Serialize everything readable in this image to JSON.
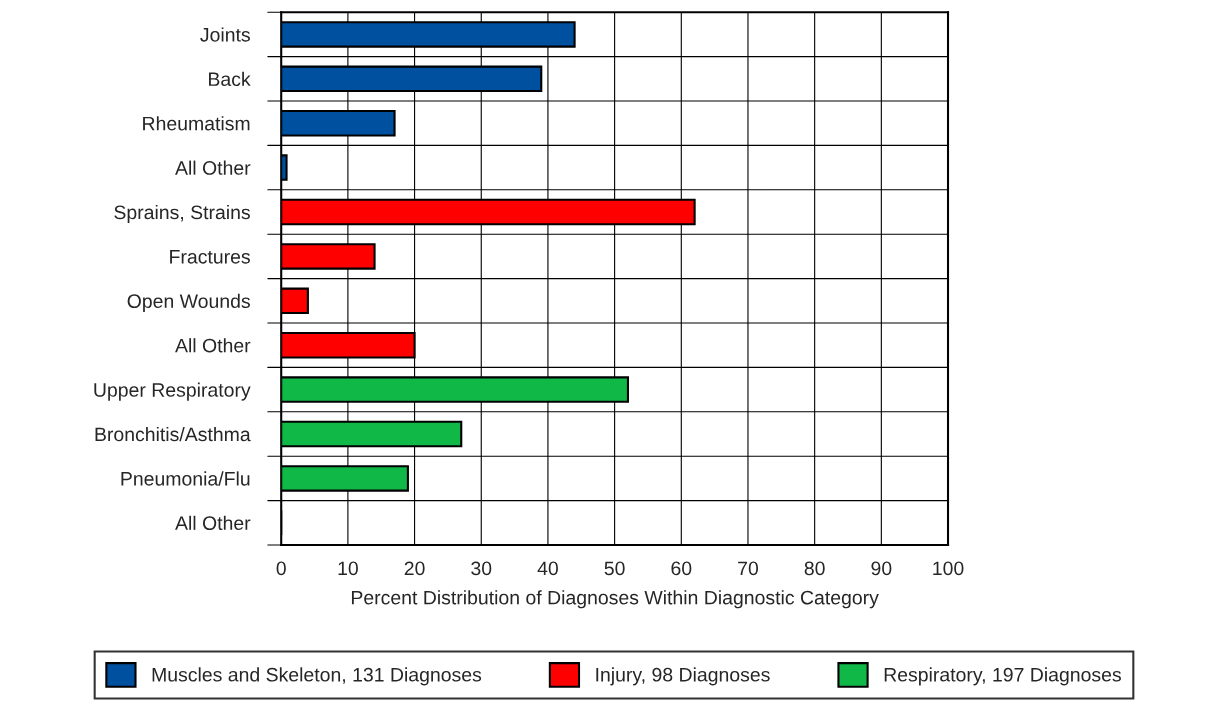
{
  "chart_data": {
    "type": "bar",
    "orientation": "horizontal",
    "categories": [
      "Joints",
      "Back",
      "Rheumatism",
      "All Other",
      "Sprains, Strains",
      "Fractures",
      "Open Wounds",
      "All Other",
      "Upper Respiratory",
      "Bronchitis/Asthma",
      "Pneumonia/Flu",
      "All Other"
    ],
    "series": [
      {
        "name": "Muscles and Skeleton, 131 Diagnoses",
        "color": "#0050a0",
        "values": [
          44,
          39,
          17,
          0.8,
          null,
          null,
          null,
          null,
          null,
          null,
          null,
          null
        ]
      },
      {
        "name": "Injury, 98 Diagnoses",
        "color": "#ff0000",
        "values": [
          null,
          null,
          null,
          null,
          62,
          14,
          4,
          20,
          null,
          null,
          null,
          null
        ]
      },
      {
        "name": "Respiratory, 197 Diagnoses",
        "color": "#10b848",
        "values": [
          null,
          null,
          null,
          null,
          null,
          null,
          null,
          null,
          52,
          27,
          19,
          0
        ]
      }
    ],
    "xlabel": "Percent Distribution of Diagnoses Within Diagnostic Category",
    "xlim": [
      0,
      100
    ],
    "xticks": [
      0,
      10,
      20,
      30,
      40,
      50,
      60,
      70,
      80,
      90,
      100
    ],
    "grid": true,
    "legend": "bottom"
  }
}
